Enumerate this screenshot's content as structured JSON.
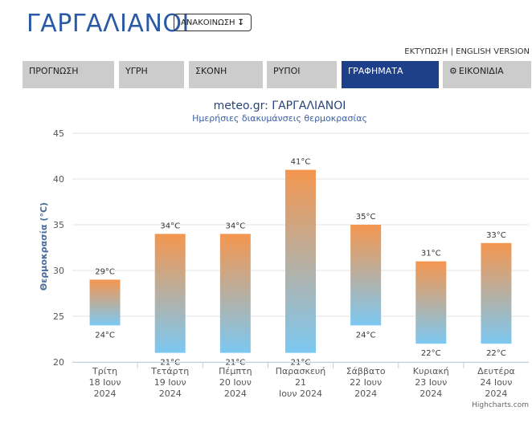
{
  "header": {
    "title": "ΓΑΡΓΑΛΙΑΝΟΙ",
    "announce_label": "ΑΝΑΚΟΙΝΩΣΗ",
    "announce_icon": "sort-down-icon",
    "print_link": "ΕΚΤΥΠΩΣΗ",
    "separator": "|",
    "english_link": "ENGLISH VERSION"
  },
  "tabs": [
    {
      "label": "ΠΡΟΓΝΩΣΗ",
      "active": false
    },
    {
      "label": "ΥΓΡΗ",
      "active": false
    },
    {
      "label": "ΣΚΟΝΗ",
      "active": false
    },
    {
      "label": "ΡΥΠΟΙ",
      "active": false
    },
    {
      "label": "ΓΡΑΦΗΜΑΤΑ",
      "active": true
    },
    {
      "label": "ΕΙΚΟΝΙΔΙΑ",
      "active": false,
      "icon": "gear-icon"
    }
  ],
  "colors": {
    "accent": "#1e3f8a",
    "title": "#2a5aa6",
    "tab_bg": "#cccccc",
    "bar_top": "#f4964f",
    "bar_bottom": "#7cc8f2"
  },
  "chart_data": {
    "type": "bar",
    "subtype": "columnrange",
    "title": "meteo.gr: ΓΑΡΓΑΛΙΑΝΟΙ",
    "subtitle": "Ημερήσιες διακυμάνσεις θερμοκρασίας",
    "ylabel": "Θερμοκρασία (°C)",
    "ylim": [
      20,
      45
    ],
    "yticks": [
      20,
      25,
      30,
      35,
      40,
      45
    ],
    "grid": true,
    "categories": [
      [
        "Τρίτη",
        "18 Ιουν",
        "2024"
      ],
      [
        "Τετάρτη",
        "19 Ιουν",
        "2024"
      ],
      [
        "Πέμπτη",
        "20 Ιουν",
        "2024"
      ],
      [
        "Παρασκευή",
        "21",
        "Ιουν 2024"
      ],
      [
        "Σάββατο",
        "22 Ιουν",
        "2024"
      ],
      [
        "Κυριακή",
        "23 Ιουν",
        "2024"
      ],
      [
        "Δευτέρα",
        "24 Ιουν",
        "2024"
      ]
    ],
    "low": [
      24,
      21,
      21,
      21,
      24,
      22,
      22
    ],
    "high": [
      29,
      34,
      34,
      41,
      35,
      31,
      33
    ],
    "low_labels": [
      "24°C",
      "21°C",
      "21°C",
      "21°C",
      "24°C",
      "22°C",
      "22°C"
    ],
    "high_labels": [
      "29°C",
      "34°C",
      "34°C",
      "41°C",
      "35°C",
      "31°C",
      "33°C"
    ],
    "credits": "Highcharts.com"
  }
}
